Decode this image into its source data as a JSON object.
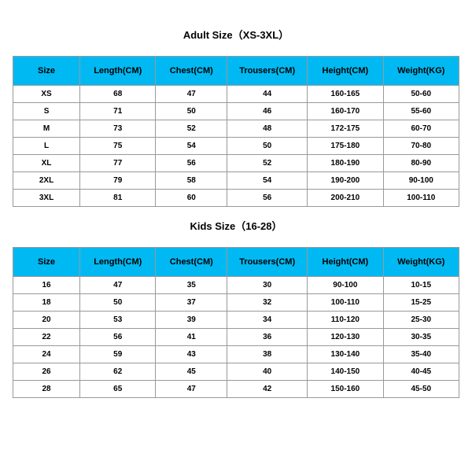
{
  "styling": {
    "header_bg": "#00b9f2",
    "border_color": "#999999",
    "text_color": "#000000",
    "background_color": "#ffffff",
    "title_fontsize": 13,
    "header_fontsize": 11,
    "cell_fontsize": 10,
    "col_widths_pct": [
      15,
      17,
      16,
      18,
      17,
      17
    ]
  },
  "adult": {
    "title": "Adult Size（XS-3XL）",
    "columns": [
      "Size",
      "Length(CM)",
      "Chest(CM)",
      "Trousers(CM)",
      "Height(CM)",
      "Weight(KG)"
    ],
    "rows": [
      [
        "XS",
        "68",
        "47",
        "44",
        "160-165",
        "50-60"
      ],
      [
        "S",
        "71",
        "50",
        "46",
        "160-170",
        "55-60"
      ],
      [
        "M",
        "73",
        "52",
        "48",
        "172-175",
        "60-70"
      ],
      [
        "L",
        "75",
        "54",
        "50",
        "175-180",
        "70-80"
      ],
      [
        "XL",
        "77",
        "56",
        "52",
        "180-190",
        "80-90"
      ],
      [
        "2XL",
        "79",
        "58",
        "54",
        "190-200",
        "90-100"
      ],
      [
        "3XL",
        "81",
        "60",
        "56",
        "200-210",
        "100-110"
      ]
    ]
  },
  "kids": {
    "title": "Kids Size（16-28）",
    "columns": [
      "Size",
      "Length(CM)",
      "Chest(CM)",
      "Trousers(CM)",
      "Height(CM)",
      "Weight(KG)"
    ],
    "rows": [
      [
        "16",
        "47",
        "35",
        "30",
        "90-100",
        "10-15"
      ],
      [
        "18",
        "50",
        "37",
        "32",
        "100-110",
        "15-25"
      ],
      [
        "20",
        "53",
        "39",
        "34",
        "110-120",
        "25-30"
      ],
      [
        "22",
        "56",
        "41",
        "36",
        "120-130",
        "30-35"
      ],
      [
        "24",
        "59",
        "43",
        "38",
        "130-140",
        "35-40"
      ],
      [
        "26",
        "62",
        "45",
        "40",
        "140-150",
        "40-45"
      ],
      [
        "28",
        "65",
        "47",
        "42",
        "150-160",
        "45-50"
      ]
    ]
  }
}
